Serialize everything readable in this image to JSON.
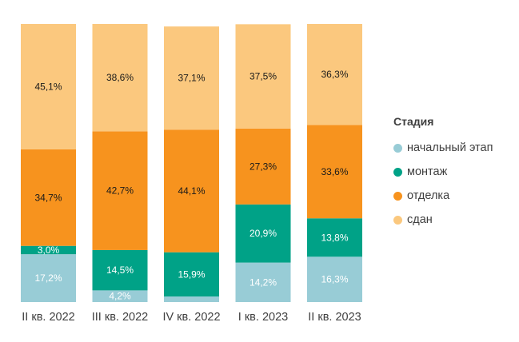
{
  "chart_data": {
    "type": "bar",
    "stacked": true,
    "percent": true,
    "categories": [
      "II кв. 2022",
      "III кв. 2022",
      "IV кв. 2022",
      "I кв. 2023",
      "II кв. 2023"
    ],
    "series": [
      {
        "name": "начальный этап",
        "color": "#98CCD6",
        "values": [
          17.2,
          4.2,
          2.0,
          14.2,
          16.3
        ],
        "labels": [
          "17,2%",
          "4,2%",
          "",
          "14,2%",
          "16,3%"
        ]
      },
      {
        "name": "монтаж",
        "color": "#00A287",
        "values": [
          3.0,
          14.5,
          15.9,
          20.9,
          13.8
        ],
        "labels": [
          "3,0%",
          "14,5%",
          "15,9%",
          "20,9%",
          "13,8%"
        ]
      },
      {
        "name": "отделка",
        "color": "#F7931E",
        "values": [
          34.7,
          42.7,
          44.1,
          27.3,
          33.6
        ],
        "labels": [
          "34,7%",
          "42,7%",
          "44,1%",
          "27,3%",
          "33,6%"
        ]
      },
      {
        "name": "сдан",
        "color": "#FBC87E",
        "values": [
          45.1,
          38.6,
          37.1,
          37.5,
          36.3
        ],
        "labels": [
          "45,1%",
          "38,6%",
          "37,1%",
          "37,5%",
          "36,3%"
        ]
      }
    ],
    "legend_title": "Стадия",
    "legend_position": "right",
    "ylim": [
      0,
      100
    ],
    "grid": false
  }
}
